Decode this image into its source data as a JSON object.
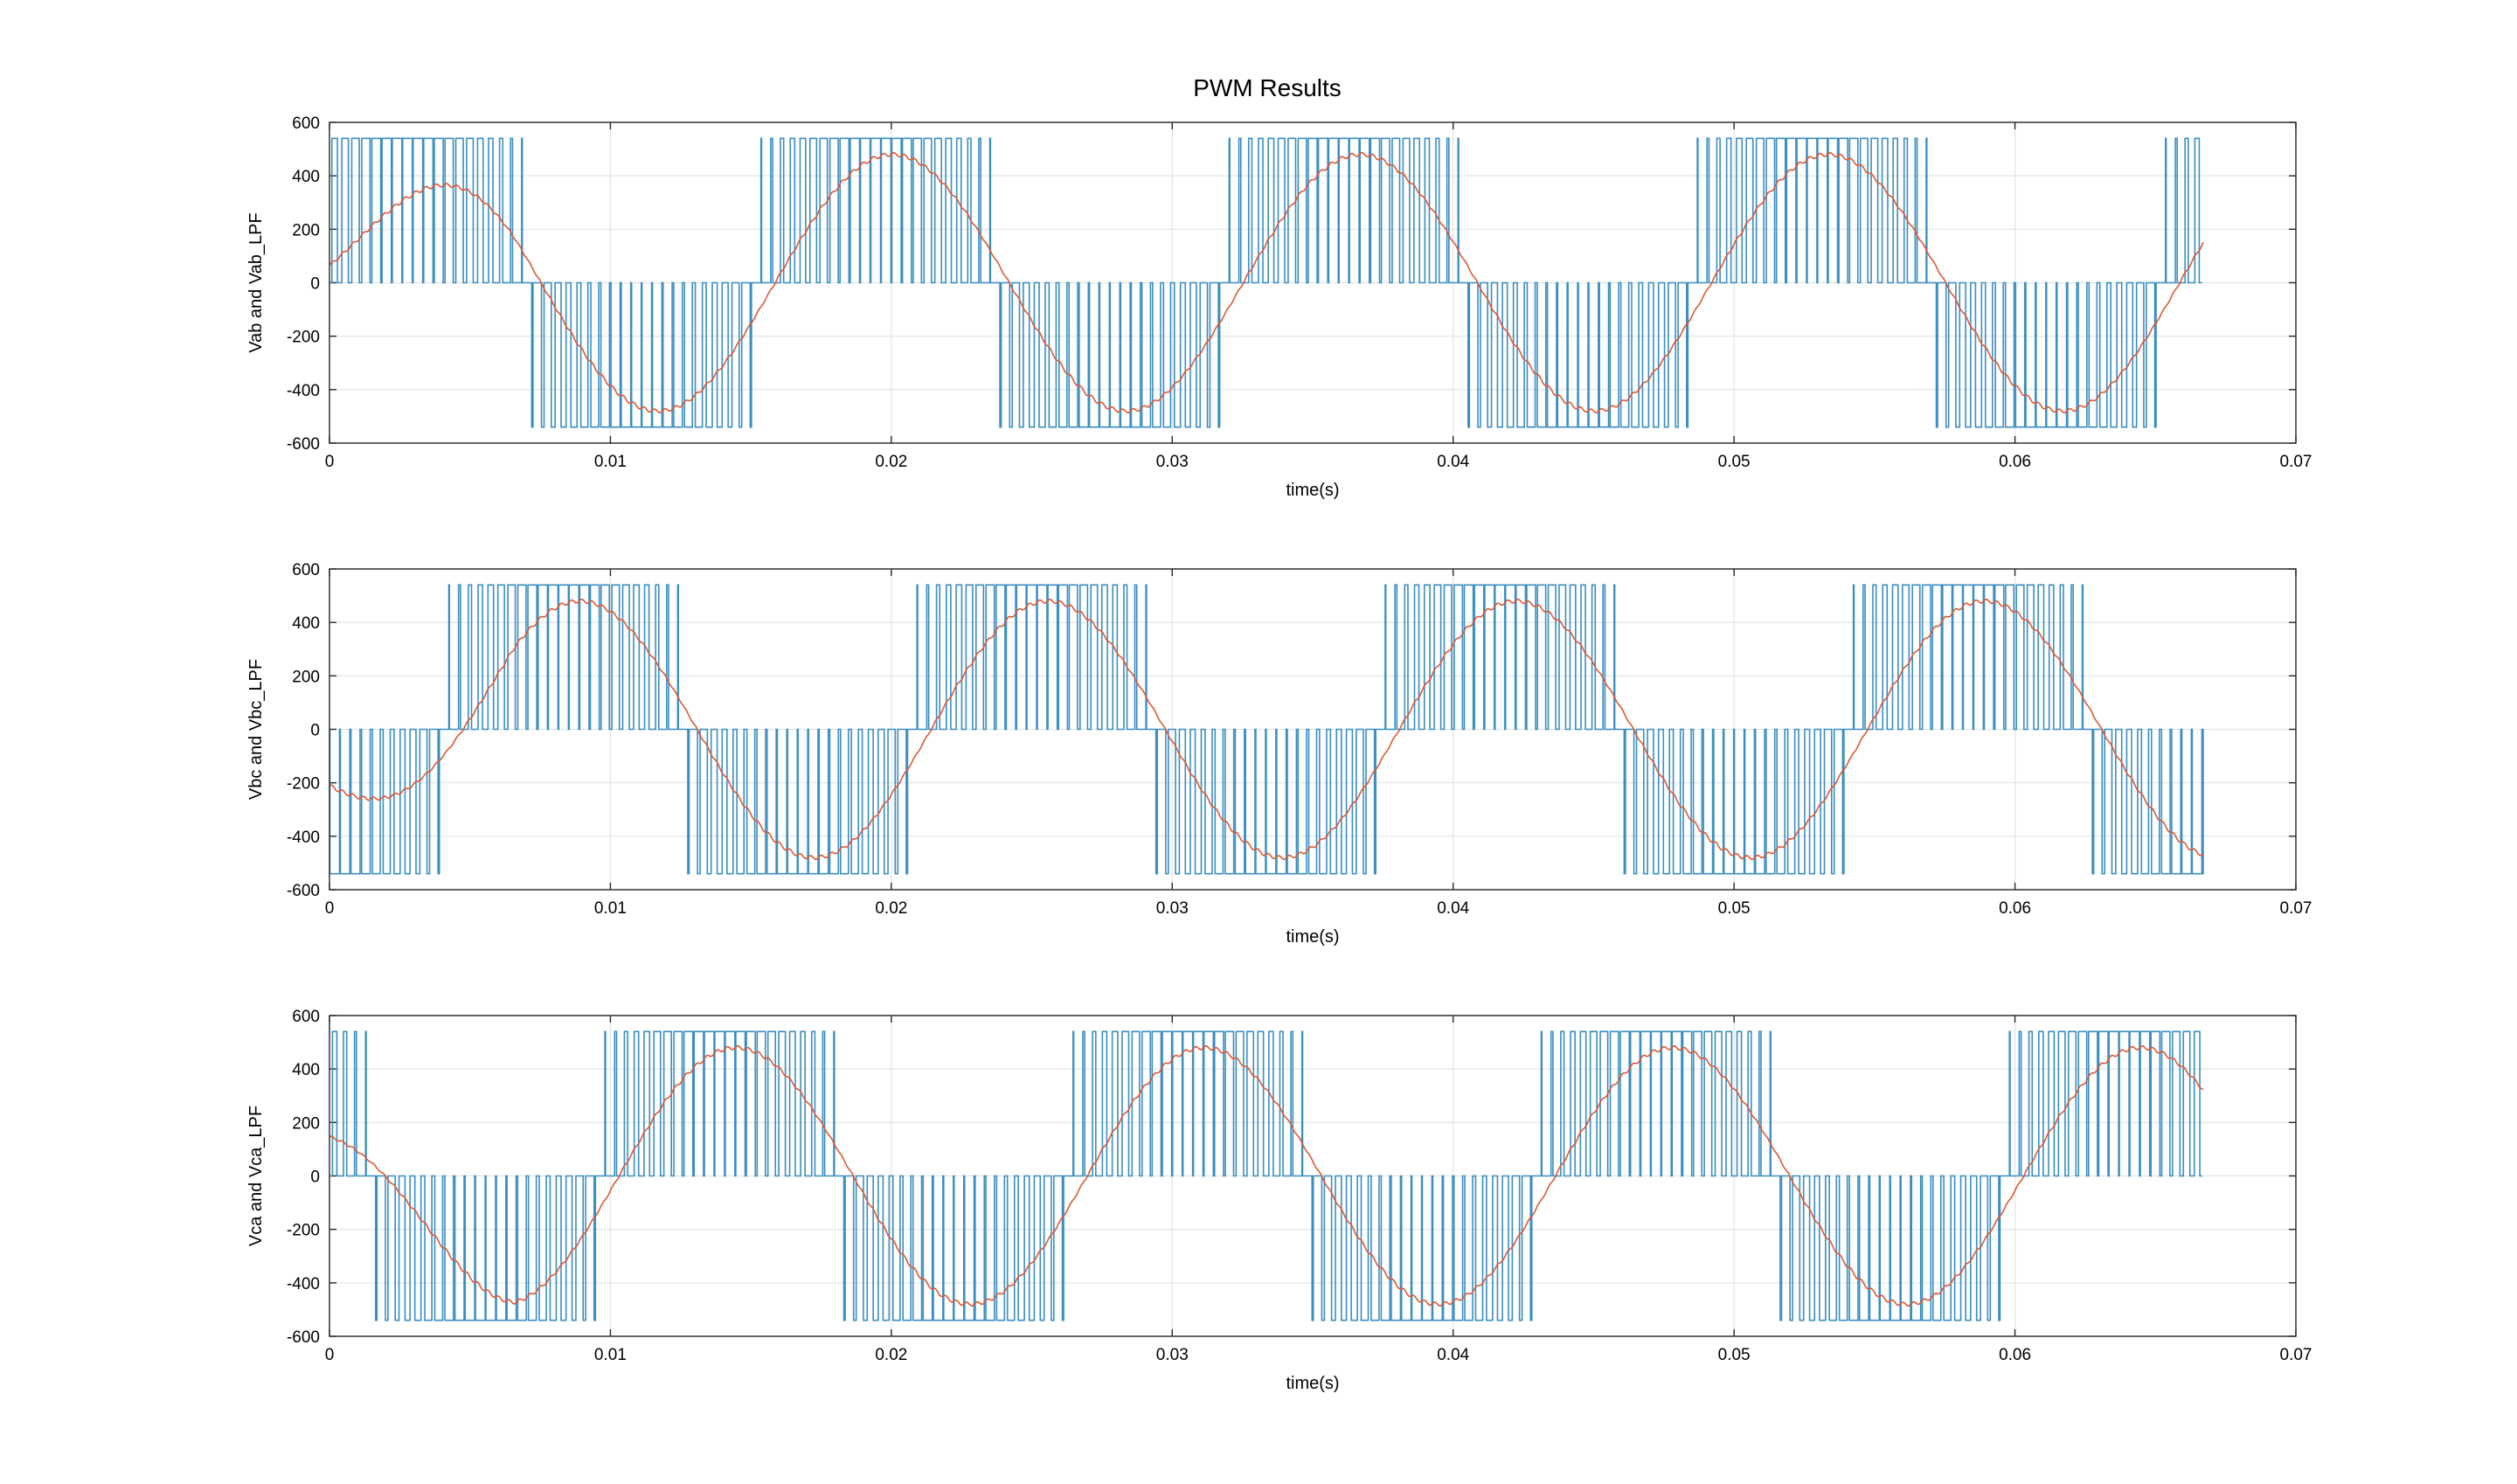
{
  "figure": {
    "title": "PWM Results"
  },
  "colors": {
    "pwm": "#3a8ec1",
    "lpf": "#dc5a35",
    "grid": "#e3e3e3",
    "axes": "#262626"
  },
  "chart_data": [
    {
      "type": "line",
      "title": "",
      "xlabel": "time(s)",
      "ylabel": "Vab and Vab_LPF",
      "xlim": [
        0,
        0.07
      ],
      "ylim": [
        -600,
        600
      ],
      "xticks": [
        "0",
        "0.01",
        "0.02",
        "0.03",
        "0.04",
        "0.05",
        "0.06",
        "0.07"
      ],
      "yticks": [
        "600",
        "400",
        "200",
        "0",
        "-200",
        "-400",
        "-600"
      ],
      "grid": true,
      "x_end": 0.0667,
      "fundamental_hz": 60,
      "phase_deg": 30,
      "modulation_index": 0.9,
      "carrier_periods_per_cycle": 45,
      "series": [
        {
          "kind": "pwm",
          "amplitude": 540,
          "levels": [
            -540,
            0,
            540
          ]
        },
        {
          "kind": "lpf",
          "amplitude": 480
        }
      ]
    },
    {
      "type": "line",
      "title": "",
      "xlabel": "time(s)",
      "ylabel": "Vbc and Vbc_LPF",
      "xlim": [
        0,
        0.07
      ],
      "ylim": [
        -600,
        600
      ],
      "xticks": [
        "0",
        "0.01",
        "0.02",
        "0.03",
        "0.04",
        "0.05",
        "0.06",
        "0.07"
      ],
      "yticks": [
        "600",
        "400",
        "200",
        "0",
        "-200",
        "-400",
        "-600"
      ],
      "grid": true,
      "x_end": 0.0667,
      "fundamental_hz": 60,
      "phase_deg": -90,
      "modulation_index": 0.9,
      "carrier_periods_per_cycle": 45,
      "series": [
        {
          "kind": "pwm",
          "amplitude": 540,
          "levels": [
            -540,
            0,
            540
          ]
        },
        {
          "kind": "lpf",
          "amplitude": 480
        }
      ]
    },
    {
      "type": "line",
      "title": "",
      "xlabel": "time(s)",
      "ylabel": "Vca and Vca_LPF",
      "xlim": [
        0,
        0.07
      ],
      "ylim": [
        -600,
        600
      ],
      "xticks": [
        "0",
        "0.01",
        "0.02",
        "0.03",
        "0.04",
        "0.05",
        "0.06",
        "0.07"
      ],
      "yticks": [
        "600",
        "400",
        "200",
        "0",
        "-200",
        "-400",
        "-600"
      ],
      "grid": true,
      "x_end": 0.0667,
      "fundamental_hz": 60,
      "phase_deg": 150,
      "modulation_index": 0.9,
      "carrier_periods_per_cycle": 45,
      "series": [
        {
          "kind": "pwm",
          "amplitude": 540,
          "levels": [
            -540,
            0,
            540
          ]
        },
        {
          "kind": "lpf",
          "amplitude": 480
        }
      ]
    }
  ]
}
